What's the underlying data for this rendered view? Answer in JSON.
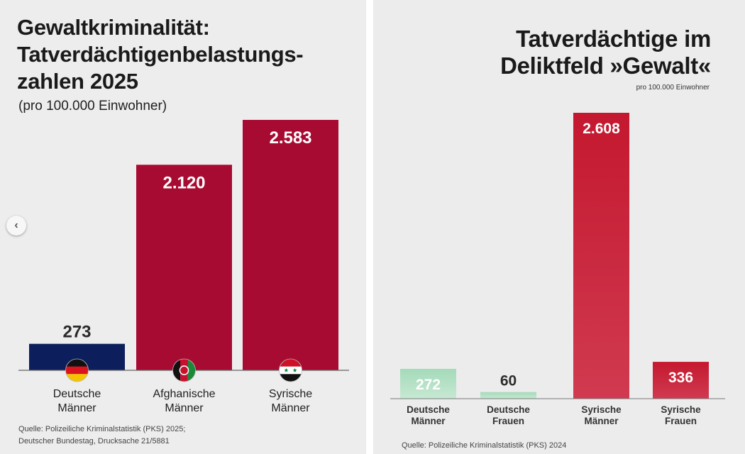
{
  "chart_data": [
    {
      "type": "bar",
      "title_lines": [
        "Gewaltkriminalität:",
        "Tatverdächtigenbelastungs-",
        "zahlen 2025"
      ],
      "subtitle": "(pro 100.000 Einwohner)",
      "categories": [
        {
          "line1": "Deutsche",
          "line2": "Männer",
          "flag": "germany-flag-icon"
        },
        {
          "line1": "Afghanische",
          "line2": "Männer",
          "flag": "afghanistan-flag-icon"
        },
        {
          "line1": "Syrische",
          "line2": "Männer",
          "flag": "syria-flag-icon"
        }
      ],
      "values": [
        273,
        2120,
        2583
      ],
      "value_labels": [
        "273",
        "2.120",
        "2.583"
      ],
      "bar_colors": [
        "#0c1f5c",
        "#a80b31",
        "#a80b31"
      ],
      "ylim": [
        0,
        2583
      ],
      "grid": false,
      "source_lines": [
        "Quelle: Polizeiliche Kriminalstatistik (PKS) 2025;",
        "Deutscher Bundestag, Drucksache 21/5881"
      ]
    },
    {
      "type": "bar",
      "title_lines": [
        "Tatverdächtige im",
        "Deliktfeld »Gewalt«"
      ],
      "subtitle": "pro 100.000 Einwohner",
      "categories": [
        {
          "line1": "Deutsche",
          "line2": "Männer"
        },
        {
          "line1": "Deutsche",
          "line2": "Frauen"
        },
        {
          "line1": "Syrische",
          "line2": "Männer"
        },
        {
          "line1": "Syrische",
          "line2": "Frauen"
        }
      ],
      "values": [
        272,
        60,
        2608,
        336
      ],
      "value_labels": [
        "272",
        "60",
        "2.608",
        "336"
      ],
      "bar_colors": [
        "#a6dcbb",
        "#a6dcbb",
        "#c81f38",
        "#c81f38"
      ],
      "ylim": [
        0,
        2608
      ],
      "grid": false,
      "source_lines": [
        "Quelle: Polizeiliche Kriminalstatistik (PKS) 2024"
      ]
    }
  ]
}
